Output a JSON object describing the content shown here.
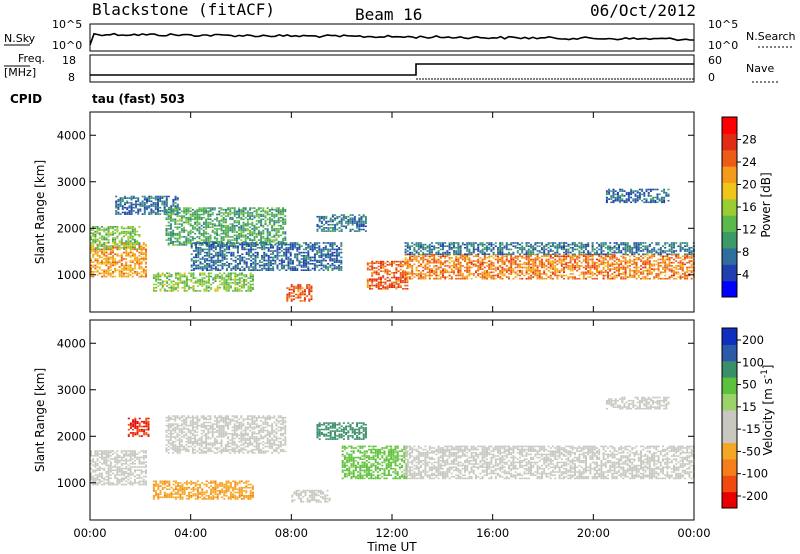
{
  "header": {
    "station": "Blackstone (fitACF)",
    "beam": "Beam 16",
    "date": "06/Oct/2012"
  },
  "top_panels": {
    "nsky_label": "N.Sky",
    "nsky_ticks": [
      "10^5",
      "10^0"
    ],
    "nsearch_label": "N.Search",
    "nsearch_ticks": [
      "10^5",
      "10^0"
    ],
    "freq_label": "Freq.",
    "freq_unit": "[MHz]",
    "freq_ticks": [
      "18",
      "8"
    ],
    "nave_label": "Nave",
    "nave_ticks": [
      "60",
      "0"
    ],
    "cpid_label": "CPID",
    "cpid_value": "tau (fast) 503"
  },
  "x_axis": {
    "label": "Time UT",
    "ticks": [
      "00:00",
      "04:00",
      "08:00",
      "12:00",
      "16:00",
      "20:00",
      "00:00"
    ],
    "range_hours": [
      0,
      24
    ]
  },
  "colors": {
    "power_scale": [
      "#0000ff",
      "#1f3fae",
      "#2e6e9e",
      "#3c9a6a",
      "#5ab94a",
      "#9acd32",
      "#f0c419",
      "#f59b1a",
      "#ee5a17",
      "#e02c14",
      "#ff0000"
    ],
    "velocity_scale": [
      "#e80000",
      "#f04a10",
      "#f57e1a",
      "#f5a623",
      "#c8c8c0",
      "#c8c8c0",
      "#9bd36b",
      "#5cc13b",
      "#3a8f6a",
      "#2a5aa8",
      "#0f2fbf"
    ],
    "trace": "#000000"
  },
  "chart_data": [
    {
      "type": "heatmap",
      "name": "Power panel",
      "ylabel": "Slant Range [km]",
      "ylim": [
        200,
        4500
      ],
      "yticks": [
        1000,
        2000,
        3000,
        4000
      ],
      "colorbar": {
        "label": "Power [dB]",
        "ticks": [
          4,
          8,
          12,
          16,
          20,
          24,
          28
        ],
        "range": [
          0,
          32
        ]
      },
      "bands": [
        {
          "t0": 0.0,
          "t1": 2.2,
          "r0": 950,
          "r1": 1700,
          "value": 22
        },
        {
          "t0": 0.0,
          "t1": 2.0,
          "r0": 1550,
          "r1": 2050,
          "value": 14
        },
        {
          "t0": 1.0,
          "t1": 3.5,
          "r0": 2300,
          "r1": 2700,
          "value": 6
        },
        {
          "t0": 2.5,
          "t1": 6.5,
          "r0": 650,
          "r1": 1050,
          "value": 14
        },
        {
          "t0": 3.0,
          "t1": 7.8,
          "r0": 1650,
          "r1": 2450,
          "value": 11
        },
        {
          "t0": 4.0,
          "t1": 10.0,
          "r0": 1100,
          "r1": 1700,
          "value": 6
        },
        {
          "t0": 7.8,
          "t1": 8.8,
          "r0": 450,
          "r1": 800,
          "value": 26
        },
        {
          "t0": 9.0,
          "t1": 11.0,
          "r0": 1950,
          "r1": 2300,
          "value": 7
        },
        {
          "t0": 11.0,
          "t1": 12.6,
          "r0": 700,
          "r1": 1300,
          "value": 26
        },
        {
          "t0": 12.5,
          "t1": 24.0,
          "r0": 900,
          "r1": 1450,
          "value": 24
        },
        {
          "t0": 12.5,
          "t1": 24.0,
          "r0": 1450,
          "r1": 1700,
          "value": 7
        },
        {
          "t0": 20.5,
          "t1": 23.0,
          "r0": 2550,
          "r1": 2850,
          "value": 6
        }
      ]
    },
    {
      "type": "heatmap",
      "name": "Velocity panel",
      "ylabel": "Slant Range [km]",
      "ylim": [
        200,
        4500
      ],
      "yticks": [
        1000,
        2000,
        3000,
        4000
      ],
      "colorbar": {
        "label": "Velocity [m s^-1]",
        "ticks": [
          "200",
          "100",
          "50",
          "15",
          "-15",
          "-50",
          "-100",
          "-200"
        ]
      },
      "bands": [
        {
          "t0": 0.0,
          "t1": 2.2,
          "r0": 950,
          "r1": 1700,
          "value": 0
        },
        {
          "t0": 1.5,
          "t1": 2.3,
          "r0": 2000,
          "r1": 2400,
          "value": -150
        },
        {
          "t0": 2.5,
          "t1": 6.5,
          "r0": 650,
          "r1": 1050,
          "value": -40
        },
        {
          "t0": 3.0,
          "t1": 7.8,
          "r0": 1650,
          "r1": 2450,
          "value": 0
        },
        {
          "t0": 8.0,
          "t1": 9.5,
          "r0": 600,
          "r1": 850,
          "value": 0
        },
        {
          "t0": 9.0,
          "t1": 11.0,
          "r0": 1950,
          "r1": 2300,
          "value": 120
        },
        {
          "t0": 10.0,
          "t1": 12.6,
          "r0": 1100,
          "r1": 1800,
          "value": 60
        },
        {
          "t0": 12.5,
          "t1": 24.0,
          "r0": 1100,
          "r1": 1800,
          "value": 0
        },
        {
          "t0": 20.5,
          "t1": 23.0,
          "r0": 2600,
          "r1": 2850,
          "value": 0
        }
      ]
    }
  ]
}
